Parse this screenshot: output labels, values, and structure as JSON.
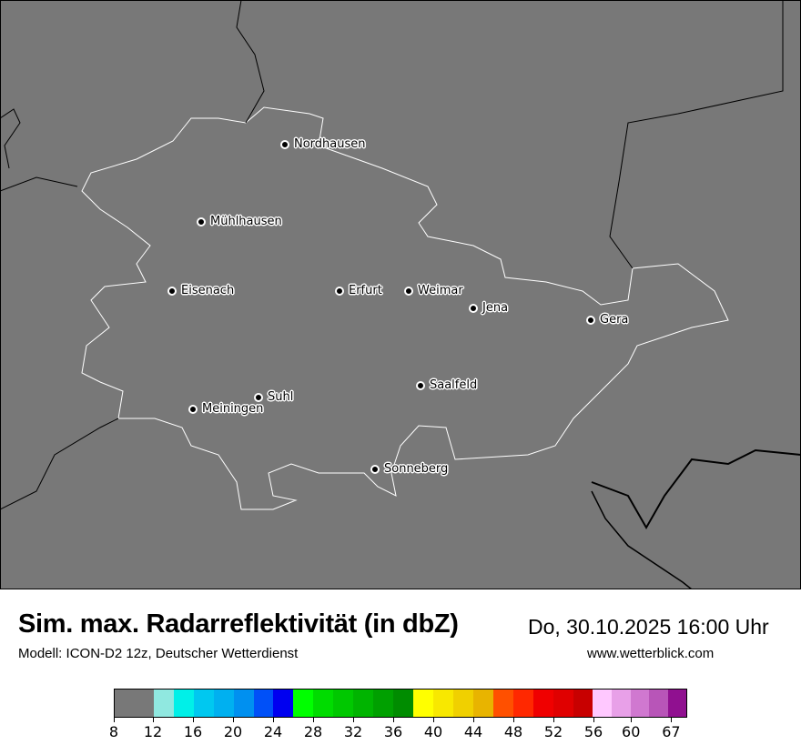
{
  "map": {
    "background_color": "#787878",
    "cities": [
      {
        "name": "Nordhausen"
      },
      {
        "name": "Mühlhausen"
      },
      {
        "name": "Eisenach"
      },
      {
        "name": "Erfurt"
      },
      {
        "name": "Weimar"
      },
      {
        "name": "Jena"
      },
      {
        "name": "Gera"
      },
      {
        "name": "Saalfeld"
      },
      {
        "name": "Suhl"
      },
      {
        "name": "Meiningen"
      },
      {
        "name": "Sonneberg"
      }
    ]
  },
  "title": "Sim. max. Radarreflektivität (in dbZ)",
  "datetime": "Do, 30.10.2025 16:00 Uhr",
  "subtitle": "Modell: ICON-D2 12z, Deutscher Wetterdienst",
  "website": "www.wetterblick.com",
  "legend": {
    "colors": [
      "#787878",
      "#90E8E0",
      "#00F0E8",
      "#00C8F0",
      "#00B0F0",
      "#0090F0",
      "#0050F8",
      "#0000F0",
      "#00FF00",
      "#00DC00",
      "#00C800",
      "#00B400",
      "#00A000",
      "#008C00",
      "#FFFF00",
      "#F8E800",
      "#F0D000",
      "#E8B400",
      "#FF5000",
      "#FF2800",
      "#F00000",
      "#E00000",
      "#C80000",
      "#FFC8FF",
      "#E8A0E8",
      "#D078D0",
      "#B855B8",
      "#901090"
    ],
    "ticks": [
      "8",
      "12",
      "16",
      "20",
      "24",
      "28",
      "32",
      "36",
      "40",
      "44",
      "48",
      "52",
      "56",
      "60",
      "67"
    ]
  }
}
